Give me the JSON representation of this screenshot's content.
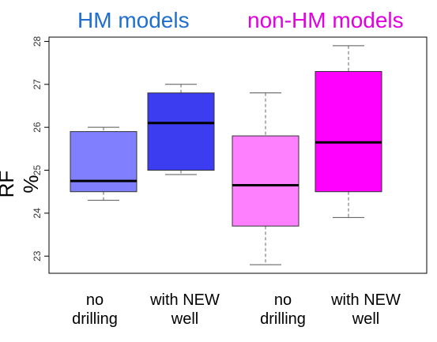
{
  "chart_data": {
    "type": "boxplot",
    "groups": [
      {
        "title": "HM models",
        "color": "#1f6fd0"
      },
      {
        "title": "non-HM models",
        "color": "#e000e0"
      }
    ],
    "ylabel": "RF %",
    "yticks": [
      "23",
      "24",
      "25",
      "26",
      "27",
      "28"
    ],
    "ylim": [
      22.6,
      28.1
    ],
    "boxes": [
      {
        "category_lines": [
          "no",
          "drilling"
        ],
        "color": "#8080ff",
        "min": 24.3,
        "q1": 24.5,
        "median": 24.75,
        "q3": 25.9,
        "max": 26.0
      },
      {
        "category_lines": [
          "with NEW",
          "well"
        ],
        "color": "#3c3cf0",
        "min": 24.9,
        "q1": 25.0,
        "median": 26.1,
        "q3": 26.8,
        "max": 27.0
      },
      {
        "category_lines": [
          "no",
          "drilling"
        ],
        "color": "#ff80ff",
        "min": 22.8,
        "q1": 23.7,
        "median": 24.65,
        "q3": 25.8,
        "max": 26.8
      },
      {
        "category_lines": [
          "with NEW",
          "well"
        ],
        "color": "#ff00ff",
        "min": 23.9,
        "q1": 24.5,
        "median": 25.65,
        "q3": 27.3,
        "max": 27.9
      }
    ]
  }
}
